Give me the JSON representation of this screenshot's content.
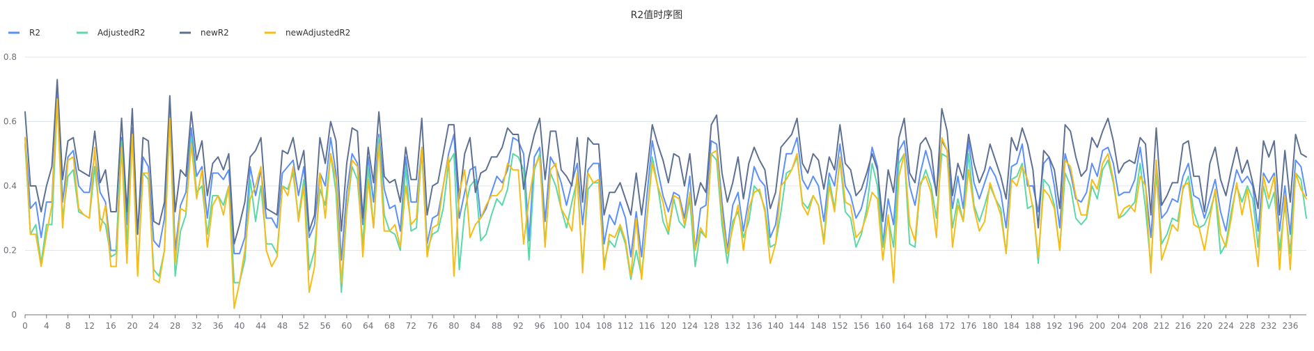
{
  "chart_data": {
    "type": "line",
    "title": "R2值时序图",
    "xlabel": "",
    "ylabel": "",
    "ylim": [
      0,
      0.8
    ],
    "y_ticks": [
      "0",
      "0.2",
      "0.4",
      "0.6",
      "0.8"
    ],
    "x_ticks": [
      "0",
      "4",
      "8",
      "12",
      "16",
      "20",
      "24",
      "28",
      "32",
      "36",
      "40",
      "44",
      "48",
      "52",
      "56",
      "60",
      "64",
      "68",
      "72",
      "76",
      "80",
      "84",
      "88",
      "92",
      "96",
      "100",
      "104",
      "108",
      "112",
      "116",
      "120",
      "124",
      "128",
      "132",
      "136",
      "140",
      "144",
      "148",
      "152",
      "156",
      "160",
      "164",
      "168",
      "172",
      "176",
      "180",
      "184",
      "188",
      "192",
      "196",
      "200",
      "204",
      "208",
      "212",
      "216",
      "220",
      "224",
      "228",
      "232",
      "236"
    ],
    "x_count": 240,
    "grid": true,
    "legend_position": "top-left",
    "series": [
      {
        "name": "R2",
        "color": "#5b8ff9",
        "values": [
          0.55,
          0.33,
          0.35,
          0.24,
          0.35,
          0.35,
          0.7,
          0.35,
          0.49,
          0.51,
          0.4,
          0.38,
          0.38,
          0.5,
          0.38,
          0.35,
          0.2,
          0.2,
          0.55,
          0.28,
          0.58,
          0.25,
          0.49,
          0.46,
          0.23,
          0.21,
          0.3,
          0.65,
          0.2,
          0.34,
          0.38,
          0.58,
          0.43,
          0.46,
          0.3,
          0.44,
          0.44,
          0.42,
          0.45,
          0.19,
          0.19,
          0.24,
          0.46,
          0.37,
          0.45,
          0.3,
          0.3,
          0.27,
          0.44,
          0.46,
          0.48,
          0.37,
          0.46,
          0.24,
          0.28,
          0.44,
          0.4,
          0.55,
          0.44,
          0.17,
          0.38,
          0.5,
          0.47,
          0.28,
          0.49,
          0.35,
          0.56,
          0.39,
          0.33,
          0.34,
          0.26,
          0.49,
          0.35,
          0.35,
          0.52,
          0.22,
          0.3,
          0.31,
          0.4,
          0.5,
          0.56,
          0.3,
          0.38,
          0.45,
          0.46,
          0.3,
          0.33,
          0.38,
          0.43,
          0.41,
          0.45,
          0.55,
          0.54,
          0.5,
          0.23,
          0.49,
          0.52,
          0.29,
          0.49,
          0.46,
          0.41,
          0.34,
          0.41,
          0.47,
          0.28,
          0.45,
          0.47,
          0.47,
          0.22,
          0.31,
          0.28,
          0.35,
          0.3,
          0.18,
          0.32,
          0.18,
          0.37,
          0.54,
          0.45,
          0.37,
          0.32,
          0.38,
          0.37,
          0.3,
          0.43,
          0.2,
          0.33,
          0.34,
          0.54,
          0.53,
          0.35,
          0.2,
          0.34,
          0.38,
          0.26,
          0.36,
          0.46,
          0.42,
          0.4,
          0.24,
          0.28,
          0.4,
          0.5,
          0.5,
          0.55,
          0.42,
          0.39,
          0.43,
          0.4,
          0.29,
          0.44,
          0.4,
          0.53,
          0.4,
          0.37,
          0.3,
          0.33,
          0.4,
          0.52,
          0.46,
          0.22,
          0.36,
          0.28,
          0.51,
          0.54,
          0.4,
          0.34,
          0.44,
          0.51,
          0.45,
          0.38,
          0.54,
          0.51,
          0.33,
          0.43,
          0.33,
          0.54,
          0.41,
          0.36,
          0.41,
          0.46,
          0.43,
          0.38,
          0.27,
          0.46,
          0.47,
          0.53,
          0.4,
          0.4,
          0.32,
          0.47,
          0.49,
          0.4,
          0.27,
          0.5,
          0.44,
          0.36,
          0.35,
          0.38,
          0.47,
          0.43,
          0.51,
          0.52,
          0.47,
          0.37,
          0.38,
          0.38,
          0.42,
          0.52,
          0.4,
          0.24,
          0.47,
          0.3,
          0.32,
          0.36,
          0.35,
          0.43,
          0.47,
          0.37,
          0.36,
          0.3,
          0.36,
          0.42,
          0.32,
          0.26,
          0.37,
          0.45,
          0.41,
          0.43,
          0.4,
          0.26,
          0.44,
          0.41,
          0.44,
          0.26,
          0.4,
          0.25,
          0.48,
          0.46,
          0.37,
          0.37,
          0.29,
          0.27
        ]
      },
      {
        "name": "AdjustedR2",
        "color": "#5ad8a6",
        "values": [
          0.53,
          0.25,
          0.28,
          0.16,
          0.28,
          0.28,
          0.66,
          0.3,
          0.43,
          0.45,
          0.32,
          0.31,
          0.3,
          0.46,
          0.3,
          0.28,
          0.18,
          0.19,
          0.54,
          0.22,
          0.56,
          0.13,
          0.44,
          0.42,
          0.14,
          0.12,
          0.2,
          0.62,
          0.12,
          0.26,
          0.31,
          0.55,
          0.38,
          0.4,
          0.25,
          0.37,
          0.37,
          0.34,
          0.4,
          0.1,
          0.1,
          0.17,
          0.42,
          0.29,
          0.4,
          0.22,
          0.22,
          0.19,
          0.4,
          0.39,
          0.44,
          0.3,
          0.42,
          0.14,
          0.2,
          0.39,
          0.34,
          0.5,
          0.38,
          0.07,
          0.32,
          0.46,
          0.42,
          0.22,
          0.46,
          0.27,
          0.55,
          0.31,
          0.26,
          0.25,
          0.2,
          0.46,
          0.26,
          0.27,
          0.51,
          0.2,
          0.25,
          0.26,
          0.33,
          0.47,
          0.5,
          0.14,
          0.32,
          0.4,
          0.42,
          0.23,
          0.25,
          0.31,
          0.36,
          0.34,
          0.39,
          0.5,
          0.49,
          0.45,
          0.17,
          0.45,
          0.5,
          0.22,
          0.44,
          0.4,
          0.33,
          0.27,
          0.35,
          0.42,
          0.15,
          0.39,
          0.41,
          0.41,
          0.16,
          0.23,
          0.21,
          0.27,
          0.22,
          0.11,
          0.2,
          0.12,
          0.3,
          0.49,
          0.4,
          0.29,
          0.25,
          0.36,
          0.29,
          0.27,
          0.36,
          0.15,
          0.26,
          0.24,
          0.5,
          0.48,
          0.28,
          0.16,
          0.29,
          0.32,
          0.24,
          0.29,
          0.4,
          0.38,
          0.33,
          0.21,
          0.22,
          0.32,
          0.44,
          0.45,
          0.49,
          0.35,
          0.33,
          0.37,
          0.34,
          0.23,
          0.42,
          0.33,
          0.48,
          0.32,
          0.3,
          0.21,
          0.25,
          0.33,
          0.47,
          0.4,
          0.21,
          0.3,
          0.21,
          0.47,
          0.5,
          0.22,
          0.21,
          0.4,
          0.45,
          0.4,
          0.3,
          0.5,
          0.49,
          0.27,
          0.36,
          0.29,
          0.5,
          0.34,
          0.29,
          0.34,
          0.4,
          0.36,
          0.33,
          0.19,
          0.42,
          0.43,
          0.47,
          0.33,
          0.34,
          0.16,
          0.42,
          0.4,
          0.34,
          0.2,
          0.44,
          0.4,
          0.3,
          0.28,
          0.3,
          0.4,
          0.36,
          0.45,
          0.48,
          0.41,
          0.3,
          0.31,
          0.33,
          0.35,
          0.47,
          0.33,
          0.15,
          0.44,
          0.22,
          0.25,
          0.3,
          0.29,
          0.39,
          0.43,
          0.32,
          0.27,
          0.28,
          0.32,
          0.38,
          0.19,
          0.22,
          0.32,
          0.4,
          0.35,
          0.4,
          0.36,
          0.21,
          0.4,
          0.33,
          0.38,
          0.2,
          0.34,
          0.19,
          0.44,
          0.42,
          0.3,
          0.3,
          0.2,
          0.19
        ]
      },
      {
        "name": "newR2",
        "color": "#5d7092",
        "values": [
          0.63,
          0.4,
          0.4,
          0.32,
          0.4,
          0.46,
          0.73,
          0.42,
          0.54,
          0.55,
          0.45,
          0.44,
          0.43,
          0.57,
          0.41,
          0.45,
          0.32,
          0.32,
          0.61,
          0.32,
          0.64,
          0.25,
          0.55,
          0.54,
          0.29,
          0.28,
          0.35,
          0.68,
          0.32,
          0.45,
          0.43,
          0.63,
          0.48,
          0.54,
          0.37,
          0.47,
          0.49,
          0.45,
          0.5,
          0.22,
          0.28,
          0.35,
          0.49,
          0.51,
          0.55,
          0.33,
          0.32,
          0.31,
          0.51,
          0.5,
          0.55,
          0.45,
          0.51,
          0.26,
          0.31,
          0.55,
          0.47,
          0.6,
          0.54,
          0.26,
          0.47,
          0.58,
          0.57,
          0.3,
          0.52,
          0.41,
          0.63,
          0.43,
          0.41,
          0.42,
          0.35,
          0.52,
          0.42,
          0.42,
          0.61,
          0.31,
          0.4,
          0.41,
          0.5,
          0.59,
          0.59,
          0.36,
          0.5,
          0.55,
          0.38,
          0.44,
          0.45,
          0.49,
          0.49,
          0.52,
          0.58,
          0.56,
          0.56,
          0.39,
          0.49,
          0.56,
          0.61,
          0.42,
          0.57,
          0.57,
          0.45,
          0.43,
          0.4,
          0.55,
          0.35,
          0.55,
          0.53,
          0.53,
          0.31,
          0.38,
          0.38,
          0.41,
          0.36,
          0.31,
          0.44,
          0.31,
          0.44,
          0.59,
          0.53,
          0.48,
          0.41,
          0.5,
          0.49,
          0.4,
          0.5,
          0.34,
          0.41,
          0.38,
          0.59,
          0.62,
          0.44,
          0.35,
          0.41,
          0.49,
          0.36,
          0.47,
          0.52,
          0.48,
          0.45,
          0.33,
          0.38,
          0.52,
          0.54,
          0.56,
          0.61,
          0.47,
          0.44,
          0.5,
          0.48,
          0.39,
          0.49,
          0.45,
          0.59,
          0.47,
          0.45,
          0.37,
          0.39,
          0.44,
          0.5,
          0.45,
          0.29,
          0.45,
          0.38,
          0.55,
          0.61,
          0.44,
          0.41,
          0.53,
          0.55,
          0.51,
          0.37,
          0.64,
          0.57,
          0.37,
          0.47,
          0.42,
          0.56,
          0.47,
          0.41,
          0.45,
          0.53,
          0.48,
          0.43,
          0.36,
          0.55,
          0.51,
          0.58,
          0.53,
          0.45,
          0.27,
          0.51,
          0.49,
          0.45,
          0.33,
          0.59,
          0.57,
          0.49,
          0.43,
          0.45,
          0.55,
          0.52,
          0.57,
          0.61,
          0.54,
          0.44,
          0.47,
          0.48,
          0.47,
          0.55,
          0.53,
          0.31,
          0.58,
          0.34,
          0.37,
          0.41,
          0.41,
          0.53,
          0.54,
          0.43,
          0.43,
          0.32,
          0.47,
          0.52,
          0.42,
          0.37,
          0.45,
          0.52,
          0.44,
          0.48,
          0.41,
          0.33,
          0.54,
          0.49,
          0.54,
          0.31,
          0.51,
          0.35,
          0.56,
          0.5,
          0.49,
          0.48,
          0.36,
          0.34
        ]
      },
      {
        "name": "newAdjustedR2",
        "color": "#f6bd16",
        "values": [
          0.55,
          0.25,
          0.25,
          0.15,
          0.25,
          0.34,
          0.67,
          0.27,
          0.48,
          0.49,
          0.33,
          0.31,
          0.3,
          0.52,
          0.26,
          0.34,
          0.15,
          0.15,
          0.52,
          0.16,
          0.56,
          0.12,
          0.44,
          0.44,
          0.11,
          0.1,
          0.2,
          0.61,
          0.16,
          0.33,
          0.32,
          0.53,
          0.36,
          0.45,
          0.21,
          0.34,
          0.37,
          0.31,
          0.4,
          0.02,
          0.1,
          0.2,
          0.36,
          0.4,
          0.46,
          0.2,
          0.15,
          0.18,
          0.4,
          0.37,
          0.46,
          0.29,
          0.4,
          0.07,
          0.15,
          0.44,
          0.3,
          0.5,
          0.42,
          0.1,
          0.33,
          0.48,
          0.46,
          0.18,
          0.42,
          0.27,
          0.53,
          0.26,
          0.26,
          0.28,
          0.21,
          0.4,
          0.28,
          0.3,
          0.52,
          0.18,
          0.27,
          0.28,
          0.4,
          0.49,
          0.12,
          0.38,
          0.45,
          0.24,
          0.28,
          0.3,
          0.34,
          0.37,
          0.37,
          0.39,
          0.47,
          0.45,
          0.45,
          0.22,
          0.36,
          0.46,
          0.49,
          0.21,
          0.45,
          0.47,
          0.33,
          0.3,
          0.26,
          0.44,
          0.13,
          0.44,
          0.41,
          0.42,
          0.14,
          0.25,
          0.24,
          0.28,
          0.23,
          0.12,
          0.3,
          0.11,
          0.3,
          0.47,
          0.4,
          0.35,
          0.26,
          0.37,
          0.36,
          0.28,
          0.38,
          0.2,
          0.27,
          0.24,
          0.5,
          0.51,
          0.31,
          0.19,
          0.27,
          0.34,
          0.2,
          0.33,
          0.38,
          0.39,
          0.32,
          0.16,
          0.22,
          0.4,
          0.42,
          0.45,
          0.5,
          0.34,
          0.31,
          0.37,
          0.34,
          0.22,
          0.4,
          0.32,
          0.49,
          0.35,
          0.34,
          0.24,
          0.26,
          0.31,
          0.38,
          0.36,
          0.17,
          0.31,
          0.1,
          0.43,
          0.5,
          0.28,
          0.23,
          0.41,
          0.43,
          0.38,
          0.24,
          0.55,
          0.51,
          0.21,
          0.34,
          0.29,
          0.45,
          0.33,
          0.26,
          0.29,
          0.41,
          0.36,
          0.31,
          0.19,
          0.42,
          0.4,
          0.46,
          0.42,
          0.33,
          0.18,
          0.39,
          0.37,
          0.33,
          0.2,
          0.48,
          0.46,
          0.37,
          0.31,
          0.31,
          0.42,
          0.39,
          0.47,
          0.5,
          0.42,
          0.3,
          0.33,
          0.34,
          0.32,
          0.43,
          0.4,
          0.13,
          0.48,
          0.17,
          0.22,
          0.28,
          0.26,
          0.4,
          0.41,
          0.28,
          0.27,
          0.2,
          0.3,
          0.39,
          0.25,
          0.21,
          0.3,
          0.41,
          0.31,
          0.39,
          0.28,
          0.15,
          0.43,
          0.36,
          0.43,
          0.14,
          0.37,
          0.14,
          0.44,
          0.39,
          0.36,
          0.35,
          0.21,
          0.17
        ]
      }
    ]
  }
}
